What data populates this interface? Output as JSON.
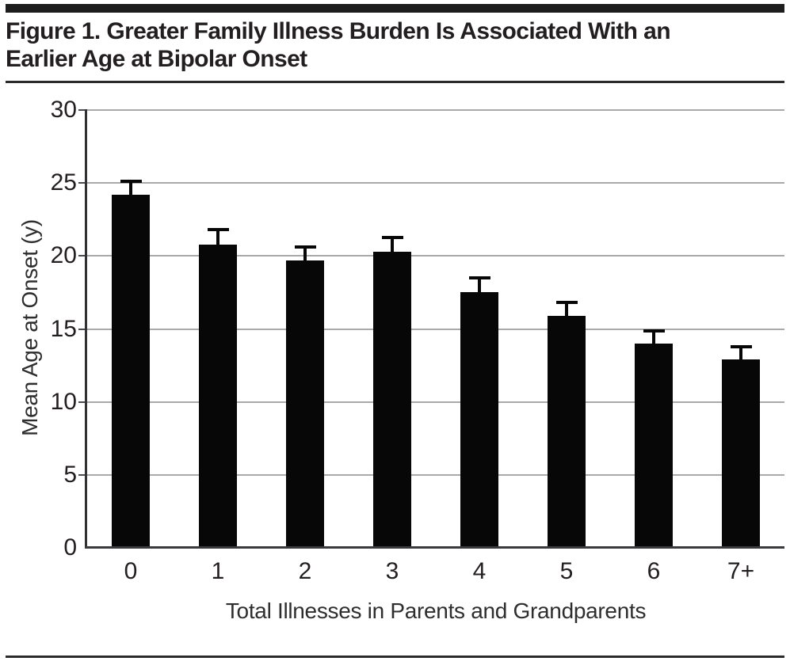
{
  "figure": {
    "title_line1": "Figure 1. Greater Family Illness Burden Is Associated With an",
    "title_line2": "Earlier Age at Bipolar Onset"
  },
  "chart_data": {
    "type": "bar",
    "title": "Figure 1. Greater Family Illness Burden Is Associated With an Earlier Age at Bipolar Onset",
    "categories": [
      "0",
      "1",
      "2",
      "3",
      "4",
      "5",
      "6",
      "7+"
    ],
    "values": [
      24.2,
      20.8,
      19.7,
      20.3,
      17.5,
      15.9,
      14.0,
      12.9
    ],
    "error_bars_upper": [
      1.0,
      1.1,
      1.0,
      1.1,
      1.1,
      1.0,
      1.0,
      1.0
    ],
    "xlabel": "Total Illnesses in Parents and Grandparents",
    "ylabel": "Mean Age at Onset (y)",
    "ylim": [
      0,
      30
    ],
    "yticks": [
      0,
      5,
      10,
      15,
      20,
      25,
      30
    ],
    "grid": true,
    "legend": false,
    "colors": {
      "bar": "#070707",
      "gridline": "#a9a9a9",
      "axis": "#3a3a3c",
      "text": "#231f20",
      "rule": "#1d1d1d",
      "background": "#ffffff"
    }
  }
}
